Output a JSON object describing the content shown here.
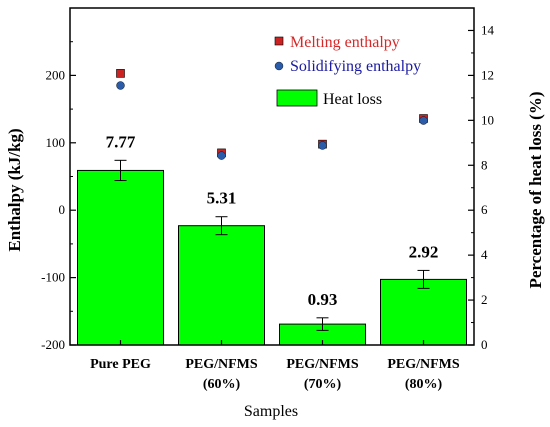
{
  "chart_data": {
    "type": "bar",
    "xlabel": "Samples",
    "ylabel_left": "Enthalpy (kJ/kg)",
    "ylabel_right": "Percentage of heat loss (%)",
    "ylim_left": [
      -200,
      300
    ],
    "ylim_right": [
      0,
      15
    ],
    "yticks_left": [
      "-200",
      "-100",
      "0",
      "100",
      "200"
    ],
    "yticks_right": [
      "0",
      "2",
      "4",
      "6",
      "8",
      "10",
      "12",
      "14"
    ],
    "categories": [
      {
        "line1": "Pure PEG",
        "line2": ""
      },
      {
        "line1": "PEG/NFMS",
        "line2": "(60%)"
      },
      {
        "line1": "PEG/NFMS",
        "line2": "(70%)"
      },
      {
        "line1": "PEG/NFMS",
        "line2": "(80%)"
      }
    ],
    "series": [
      {
        "name": "Heat loss",
        "axis": "right",
        "type": "bar",
        "color": "#00ff00",
        "values": [
          7.77,
          5.31,
          0.93,
          2.92
        ],
        "labels": [
          "7.77",
          "5.31",
          "0.93",
          "2.92"
        ],
        "errors": [
          0.45,
          0.4,
          0.28,
          0.4
        ]
      },
      {
        "name": "Melting enthalpy",
        "axis": "left",
        "type": "scatter",
        "marker": "square",
        "color": "#cc2222",
        "text_color": "#d62828",
        "values": [
          203,
          85,
          98,
          136
        ]
      },
      {
        "name": "Solidifying enthalpy",
        "axis": "left",
        "type": "scatter",
        "marker": "circle",
        "color": "#2a5caa",
        "text_color": "#1a1aa0",
        "values": [
          185,
          81,
          96,
          133
        ]
      }
    ]
  }
}
